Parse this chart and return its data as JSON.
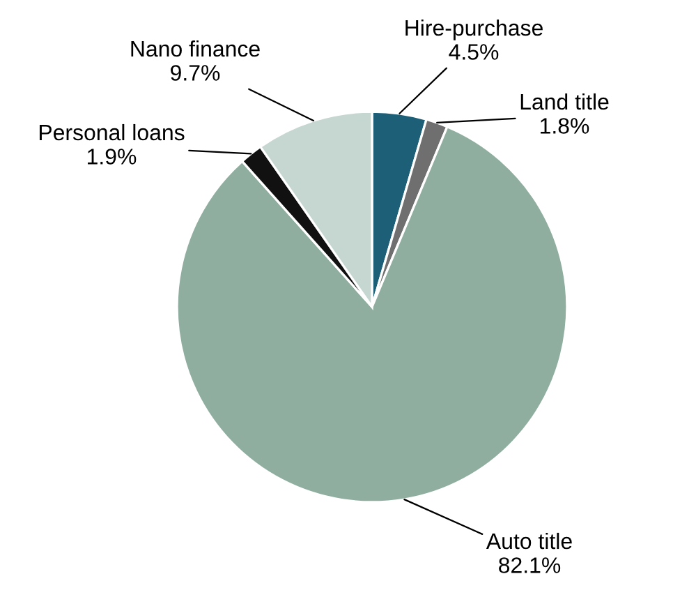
{
  "chart_data": {
    "type": "pie",
    "categories": [
      "Hire-purchase",
      "Land title",
      "Auto title",
      "Personal loans",
      "Nano finance"
    ],
    "values": [
      4.5,
      1.8,
      82.1,
      1.9,
      9.7
    ],
    "colors": [
      "#1e5f78",
      "#6f6f6f",
      "#8fae9f",
      "#111111",
      "#c6d6d1"
    ],
    "value_labels": [
      "4.5%",
      "1.8%",
      "82.1%",
      "1.9%",
      "9.7%"
    ]
  }
}
